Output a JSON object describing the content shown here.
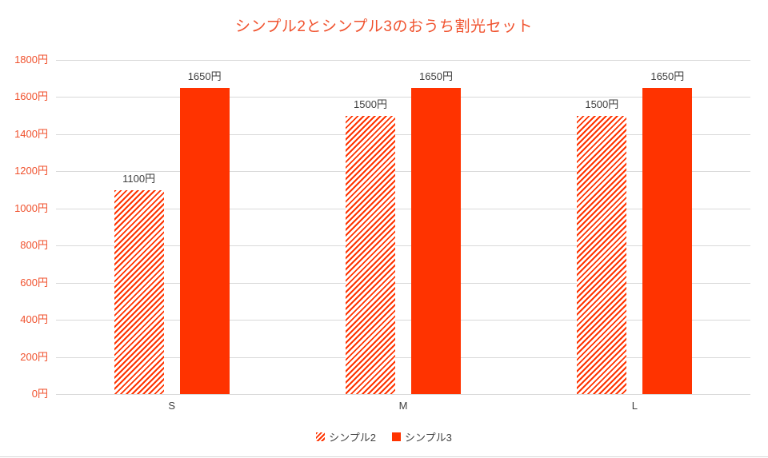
{
  "chart_data": {
    "type": "bar",
    "title": "シンプル2とシンプル3のおうち割光セット",
    "categories": [
      "S",
      "M",
      "L"
    ],
    "series": [
      {
        "name": "シンプル2",
        "fill": "hatched",
        "values": [
          1100,
          1500,
          1500
        ],
        "labels": [
          "1100円",
          "1500円",
          "1500円"
        ]
      },
      {
        "name": "シンプル3",
        "fill": "solid",
        "values": [
          1650,
          1650,
          1650
        ],
        "labels": [
          "1650円",
          "1650円",
          "1650円"
        ]
      }
    ],
    "ylim": [
      0,
      1800
    ],
    "y_tick_step": 200,
    "y_ticks": [
      "1800円",
      "1600円",
      "1400円",
      "1200円",
      "1000円",
      "800円",
      "600円",
      "400円",
      "200円",
      "0円"
    ],
    "grid": true,
    "legend_position": "bottom",
    "colors": {
      "accent": "#ff3300",
      "grid": "#d9d9d9",
      "title": "#f0522e",
      "axis_text": "#f0522e",
      "label_text": "#404040"
    }
  }
}
